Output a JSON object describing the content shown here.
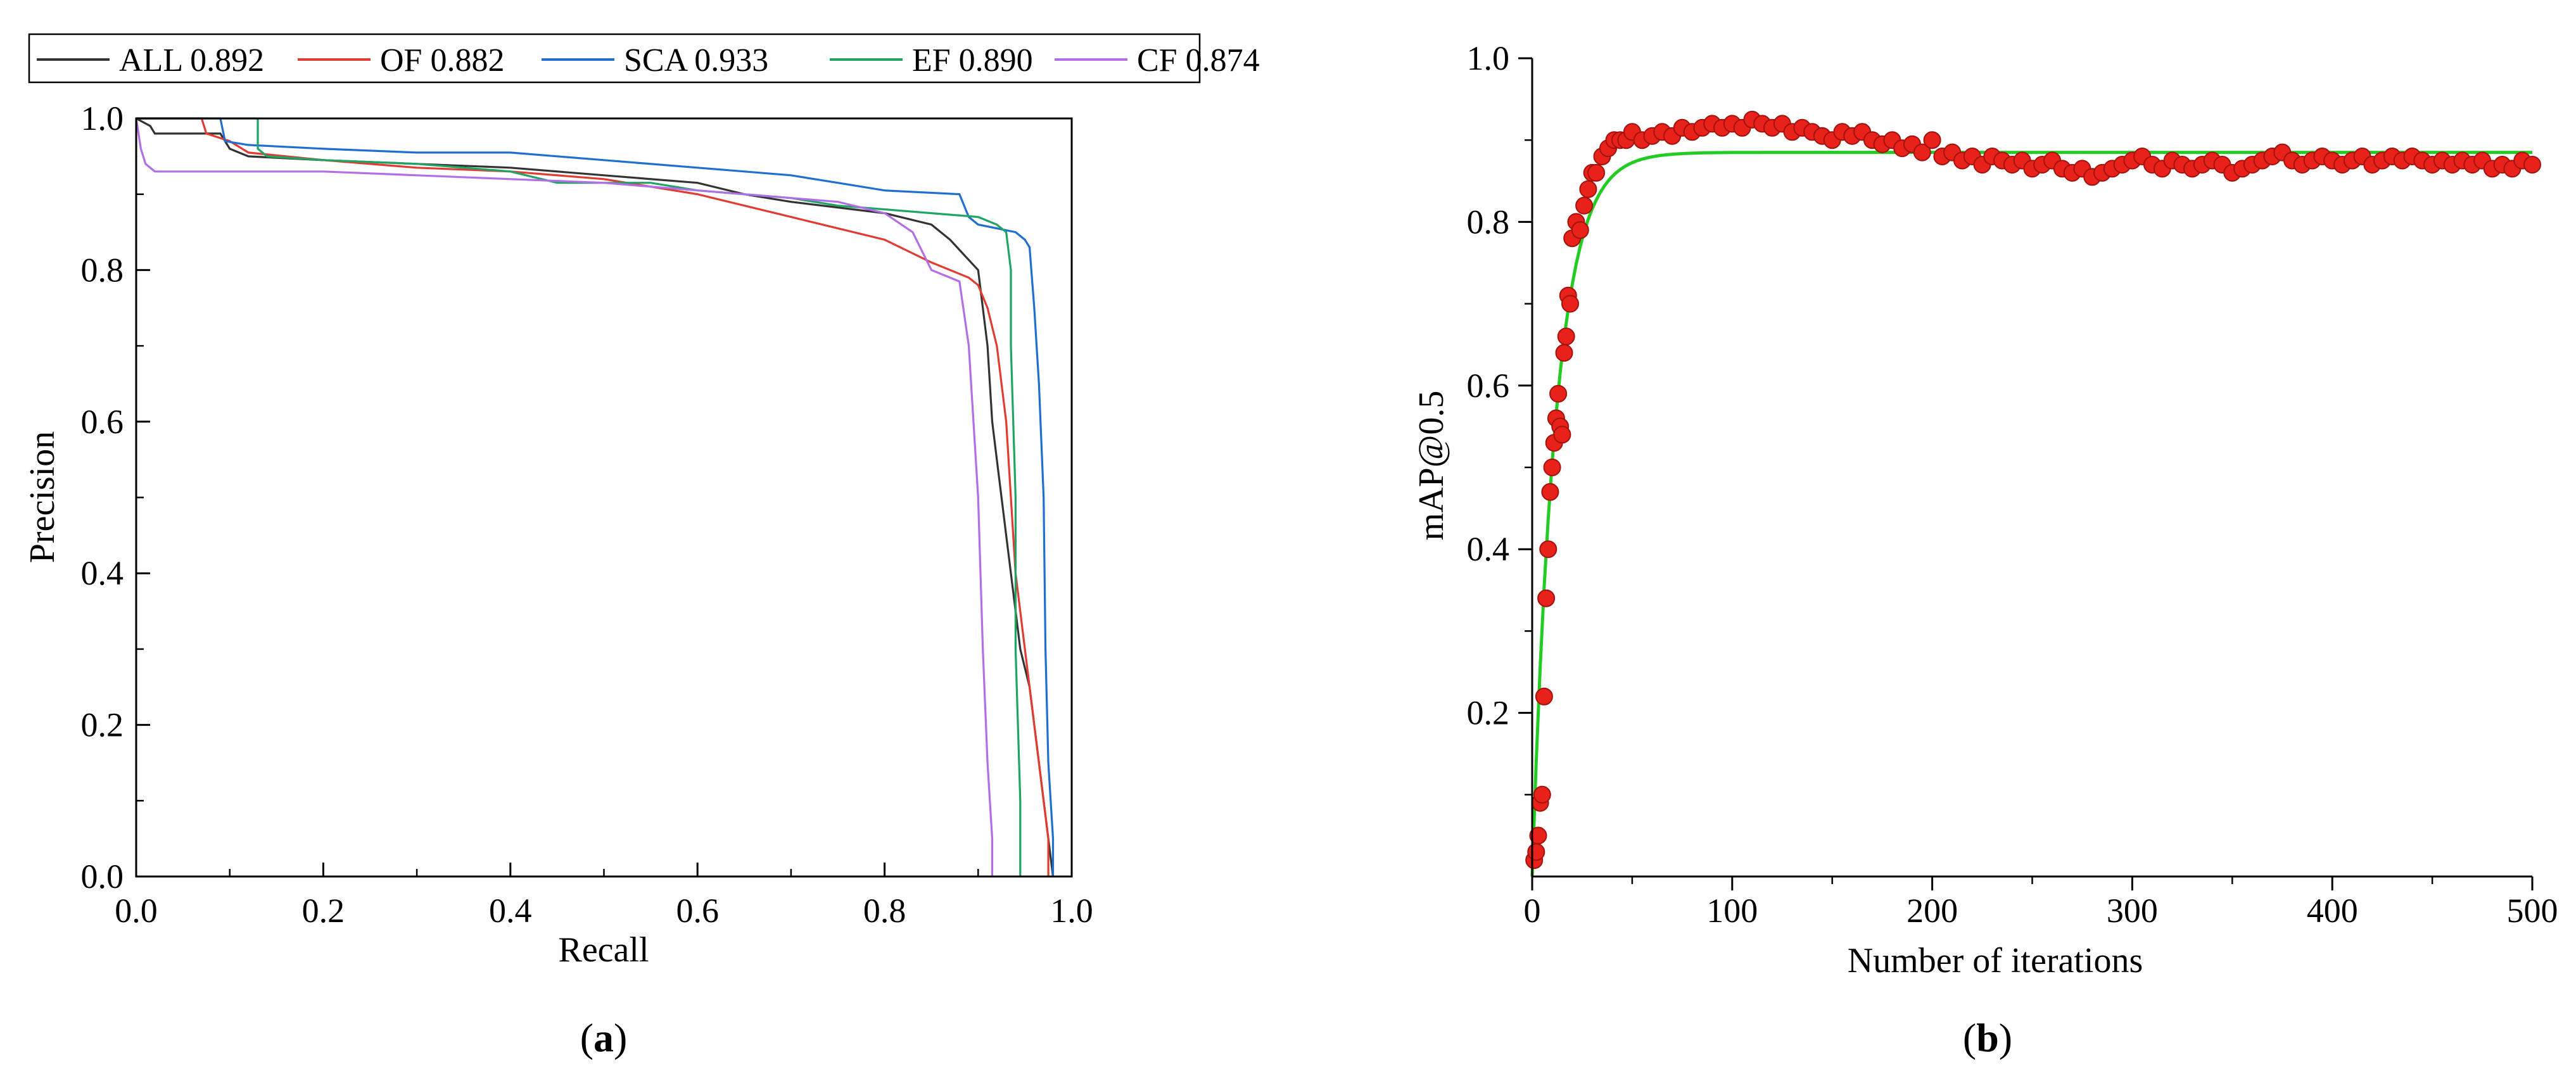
{
  "chart_data": [
    {
      "type": "line",
      "panel_label": "(a)",
      "panel_letter": "a",
      "xlabel": "Recall",
      "ylabel": "Precision",
      "xlim": [
        0.0,
        1.0
      ],
      "ylim": [
        0.0,
        1.0
      ],
      "x_ticks": [
        0.0,
        0.2,
        0.4,
        0.6,
        0.8,
        1.0
      ],
      "y_ticks": [
        0.0,
        0.2,
        0.4,
        0.6,
        0.8,
        1.0
      ],
      "x_tick_labels": [
        "0.0",
        "0.2",
        "0.4",
        "0.6",
        "0.8",
        "1.0"
      ],
      "y_tick_labels": [
        "0.0",
        "0.2",
        "0.4",
        "0.6",
        "0.8",
        "1.0"
      ],
      "legend_position": "top",
      "series": [
        {
          "name": "ALL 0.892",
          "color": "#333333",
          "points": [
            [
              0.0,
              1.0
            ],
            [
              0.015,
              0.99
            ],
            [
              0.02,
              0.98
            ],
            [
              0.09,
              0.98
            ],
            [
              0.1,
              0.96
            ],
            [
              0.12,
              0.95
            ],
            [
              0.2,
              0.945
            ],
            [
              0.3,
              0.94
            ],
            [
              0.4,
              0.935
            ],
            [
              0.5,
              0.925
            ],
            [
              0.6,
              0.915
            ],
            [
              0.65,
              0.9
            ],
            [
              0.7,
              0.89
            ],
            [
              0.8,
              0.875
            ],
            [
              0.85,
              0.86
            ],
            [
              0.87,
              0.84
            ],
            [
              0.885,
              0.82
            ],
            [
              0.9,
              0.8
            ],
            [
              0.905,
              0.75
            ],
            [
              0.91,
              0.7
            ],
            [
              0.915,
              0.6
            ],
            [
              0.92,
              0.55
            ],
            [
              0.925,
              0.5
            ],
            [
              0.93,
              0.45
            ],
            [
              0.935,
              0.4
            ],
            [
              0.94,
              0.35
            ],
            [
              0.945,
              0.3
            ],
            [
              0.955,
              0.25
            ],
            [
              0.96,
              0.2
            ],
            [
              0.965,
              0.15
            ],
            [
              0.97,
              0.1
            ],
            [
              0.975,
              0.05
            ],
            [
              0.98,
              0.0
            ]
          ]
        },
        {
          "name": "OF 0.882",
          "color": "#e03c31",
          "points": [
            [
              0.0,
              1.0
            ],
            [
              0.07,
              1.0
            ],
            [
              0.075,
              0.98
            ],
            [
              0.1,
              0.97
            ],
            [
              0.12,
              0.955
            ],
            [
              0.2,
              0.945
            ],
            [
              0.3,
              0.935
            ],
            [
              0.4,
              0.93
            ],
            [
              0.5,
              0.92
            ],
            [
              0.6,
              0.9
            ],
            [
              0.7,
              0.87
            ],
            [
              0.75,
              0.855
            ],
            [
              0.8,
              0.84
            ],
            [
              0.85,
              0.81
            ],
            [
              0.87,
              0.8
            ],
            [
              0.89,
              0.79
            ],
            [
              0.9,
              0.78
            ],
            [
              0.91,
              0.75
            ],
            [
              0.92,
              0.7
            ],
            [
              0.93,
              0.6
            ],
            [
              0.935,
              0.5
            ],
            [
              0.94,
              0.4
            ],
            [
              0.95,
              0.3
            ],
            [
              0.96,
              0.2
            ],
            [
              0.965,
              0.15
            ],
            [
              0.97,
              0.1
            ],
            [
              0.975,
              0.05
            ],
            [
              0.975,
              0.0
            ]
          ]
        },
        {
          "name": "SCA 0.933",
          "color": "#1f6fd1",
          "points": [
            [
              0.0,
              1.0
            ],
            [
              0.09,
              1.0
            ],
            [
              0.095,
              0.97
            ],
            [
              0.12,
              0.965
            ],
            [
              0.2,
              0.96
            ],
            [
              0.3,
              0.955
            ],
            [
              0.4,
              0.955
            ],
            [
              0.5,
              0.945
            ],
            [
              0.6,
              0.935
            ],
            [
              0.7,
              0.925
            ],
            [
              0.75,
              0.915
            ],
            [
              0.8,
              0.905
            ],
            [
              0.88,
              0.9
            ],
            [
              0.89,
              0.87
            ],
            [
              0.9,
              0.86
            ],
            [
              0.92,
              0.855
            ],
            [
              0.94,
              0.85
            ],
            [
              0.95,
              0.84
            ],
            [
              0.955,
              0.83
            ],
            [
              0.96,
              0.75
            ],
            [
              0.965,
              0.65
            ],
            [
              0.97,
              0.5
            ],
            [
              0.972,
              0.3
            ],
            [
              0.975,
              0.15
            ],
            [
              0.98,
              0.05
            ],
            [
              0.98,
              0.0
            ]
          ]
        },
        {
          "name": "EF 0.890",
          "color": "#20a464",
          "points": [
            [
              0.0,
              1.0
            ],
            [
              0.13,
              1.0
            ],
            [
              0.13,
              0.96
            ],
            [
              0.14,
              0.95
            ],
            [
              0.2,
              0.945
            ],
            [
              0.3,
              0.94
            ],
            [
              0.4,
              0.93
            ],
            [
              0.45,
              0.915
            ],
            [
              0.55,
              0.915
            ],
            [
              0.6,
              0.905
            ],
            [
              0.7,
              0.895
            ],
            [
              0.75,
              0.885
            ],
            [
              0.8,
              0.88
            ],
            [
              0.85,
              0.875
            ],
            [
              0.9,
              0.87
            ],
            [
              0.92,
              0.86
            ],
            [
              0.93,
              0.85
            ],
            [
              0.935,
              0.8
            ],
            [
              0.935,
              0.7
            ],
            [
              0.94,
              0.5
            ],
            [
              0.94,
              0.3
            ],
            [
              0.945,
              0.1
            ],
            [
              0.945,
              0.0
            ]
          ]
        },
        {
          "name": "CF 0.874",
          "color": "#b26ee6",
          "points": [
            [
              0.0,
              1.0
            ],
            [
              0.005,
              0.96
            ],
            [
              0.01,
              0.94
            ],
            [
              0.02,
              0.93
            ],
            [
              0.1,
              0.93
            ],
            [
              0.2,
              0.93
            ],
            [
              0.3,
              0.925
            ],
            [
              0.4,
              0.92
            ],
            [
              0.5,
              0.915
            ],
            [
              0.6,
              0.905
            ],
            [
              0.7,
              0.895
            ],
            [
              0.75,
              0.89
            ],
            [
              0.8,
              0.875
            ],
            [
              0.83,
              0.85
            ],
            [
              0.85,
              0.8
            ],
            [
              0.87,
              0.79
            ],
            [
              0.88,
              0.785
            ],
            [
              0.89,
              0.7
            ],
            [
              0.895,
              0.6
            ],
            [
              0.9,
              0.5
            ],
            [
              0.905,
              0.3
            ],
            [
              0.91,
              0.15
            ],
            [
              0.915,
              0.05
            ],
            [
              0.915,
              0.0
            ]
          ]
        }
      ]
    },
    {
      "type": "scatter",
      "panel_label": "(b)",
      "panel_letter": "b",
      "xlabel": "Number of iterations",
      "ylabel": "mAP@0.5",
      "xlim": [
        0,
        500
      ],
      "ylim": [
        0.0,
        1.0
      ],
      "x_ticks": [
        0,
        100,
        200,
        300,
        400,
        500
      ],
      "y_ticks": [
        0.2,
        0.4,
        0.6,
        0.8,
        1.0
      ],
      "x_tick_labels": [
        "0",
        "100",
        "200",
        "300",
        "400",
        "500"
      ],
      "y_tick_labels": [
        "0.2",
        "0.4",
        "0.6",
        "0.8",
        "1.0"
      ],
      "points_color": "#e8221a",
      "fit_color": "#22cc22",
      "fit_plateau": 0.885,
      "fit_rate": 0.085,
      "scatter_points": [
        [
          1,
          0.02
        ],
        [
          2,
          0.03
        ],
        [
          3,
          0.05
        ],
        [
          4,
          0.09
        ],
        [
          5,
          0.1
        ],
        [
          6,
          0.22
        ],
        [
          7,
          0.34
        ],
        [
          8,
          0.4
        ],
        [
          9,
          0.47
        ],
        [
          10,
          0.5
        ],
        [
          11,
          0.53
        ],
        [
          12,
          0.56
        ],
        [
          13,
          0.59
        ],
        [
          14,
          0.55
        ],
        [
          15,
          0.54
        ],
        [
          16,
          0.64
        ],
        [
          17,
          0.66
        ],
        [
          18,
          0.71
        ],
        [
          19,
          0.7
        ],
        [
          20,
          0.78
        ],
        [
          22,
          0.8
        ],
        [
          24,
          0.79
        ],
        [
          26,
          0.82
        ],
        [
          28,
          0.84
        ],
        [
          30,
          0.86
        ],
        [
          32,
          0.86
        ],
        [
          35,
          0.88
        ],
        [
          38,
          0.89
        ],
        [
          41,
          0.9
        ],
        [
          44,
          0.9
        ],
        [
          47,
          0.9
        ],
        [
          50,
          0.91
        ],
        [
          55,
          0.9
        ],
        [
          60,
          0.905
        ],
        [
          65,
          0.91
        ],
        [
          70,
          0.905
        ],
        [
          75,
          0.915
        ],
        [
          80,
          0.91
        ],
        [
          85,
          0.915
        ],
        [
          90,
          0.92
        ],
        [
          95,
          0.915
        ],
        [
          100,
          0.92
        ],
        [
          105,
          0.915
        ],
        [
          110,
          0.925
        ],
        [
          115,
          0.92
        ],
        [
          120,
          0.915
        ],
        [
          125,
          0.92
        ],
        [
          130,
          0.91
        ],
        [
          135,
          0.915
        ],
        [
          140,
          0.91
        ],
        [
          145,
          0.905
        ],
        [
          150,
          0.9
        ],
        [
          155,
          0.91
        ],
        [
          160,
          0.905
        ],
        [
          165,
          0.91
        ],
        [
          170,
          0.9
        ],
        [
          175,
          0.895
        ],
        [
          180,
          0.9
        ],
        [
          185,
          0.89
        ],
        [
          190,
          0.895
        ],
        [
          195,
          0.885
        ],
        [
          200,
          0.9
        ],
        [
          205,
          0.88
        ],
        [
          210,
          0.885
        ],
        [
          215,
          0.875
        ],
        [
          220,
          0.88
        ],
        [
          225,
          0.87
        ],
        [
          230,
          0.88
        ],
        [
          235,
          0.875
        ],
        [
          240,
          0.87
        ],
        [
          245,
          0.875
        ],
        [
          250,
          0.865
        ],
        [
          255,
          0.87
        ],
        [
          260,
          0.875
        ],
        [
          265,
          0.865
        ],
        [
          270,
          0.86
        ],
        [
          275,
          0.865
        ],
        [
          280,
          0.855
        ],
        [
          285,
          0.86
        ],
        [
          290,
          0.865
        ],
        [
          295,
          0.87
        ],
        [
          300,
          0.875
        ],
        [
          305,
          0.88
        ],
        [
          310,
          0.87
        ],
        [
          315,
          0.865
        ],
        [
          320,
          0.875
        ],
        [
          325,
          0.87
        ],
        [
          330,
          0.865
        ],
        [
          335,
          0.87
        ],
        [
          340,
          0.875
        ],
        [
          345,
          0.87
        ],
        [
          350,
          0.86
        ],
        [
          355,
          0.865
        ],
        [
          360,
          0.87
        ],
        [
          365,
          0.875
        ],
        [
          370,
          0.88
        ],
        [
          375,
          0.885
        ],
        [
          380,
          0.875
        ],
        [
          385,
          0.87
        ],
        [
          390,
          0.875
        ],
        [
          395,
          0.88
        ],
        [
          400,
          0.875
        ],
        [
          405,
          0.87
        ],
        [
          410,
          0.875
        ],
        [
          415,
          0.88
        ],
        [
          420,
          0.87
        ],
        [
          425,
          0.875
        ],
        [
          430,
          0.88
        ],
        [
          435,
          0.875
        ],
        [
          440,
          0.88
        ],
        [
          445,
          0.875
        ],
        [
          450,
          0.87
        ],
        [
          455,
          0.875
        ],
        [
          460,
          0.87
        ],
        [
          465,
          0.875
        ],
        [
          470,
          0.87
        ],
        [
          475,
          0.875
        ],
        [
          480,
          0.865
        ],
        [
          485,
          0.87
        ],
        [
          490,
          0.865
        ],
        [
          495,
          0.875
        ],
        [
          500,
          0.87
        ]
      ]
    }
  ]
}
